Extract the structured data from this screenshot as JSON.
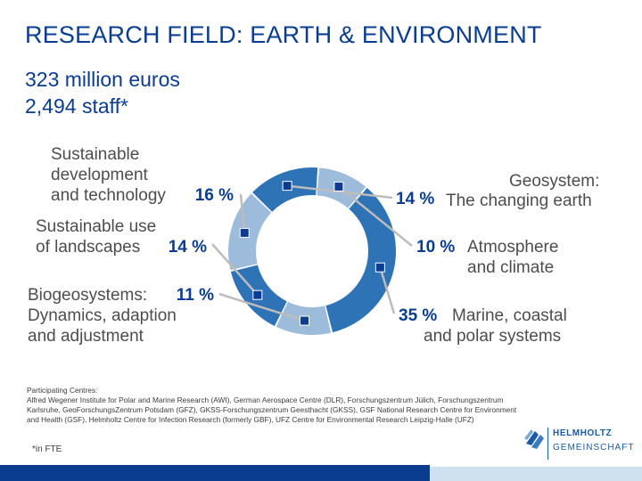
{
  "header": {
    "title": "RESEARCH FIELD: EARTH & ENVIRONMENT",
    "budget": "323 million euros",
    "staff": "2,494 staff*"
  },
  "chart_data": {
    "type": "pie",
    "style": "donut",
    "total_percent": 100,
    "slices": [
      {
        "name": "Geosystem: The changing earth",
        "lines": [
          "Geosystem:",
          "The changing earth"
        ],
        "value": 14,
        "label": "14 %",
        "color": "#2e73b5"
      },
      {
        "name": "Atmosphere and climate",
        "lines": [
          "Atmosphere",
          "and climate"
        ],
        "value": 10,
        "label": "10 %",
        "color": "#9dbcdc"
      },
      {
        "name": "Marine, coastal and polar systems",
        "lines": [
          "Marine, coastal",
          "and polar systems"
        ],
        "value": 35,
        "label": "35 %",
        "color": "#2e73b5"
      },
      {
        "name": "Biogeosystems: Dynamics, adaption and adjustment",
        "lines": [
          "Biogeosystems:",
          "Dynamics, adaption",
          "and adjustment"
        ],
        "value": 11,
        "label": "11 %",
        "color": "#9dbcdc"
      },
      {
        "name": "Sustainable use of landscapes",
        "lines": [
          "Sustainable use",
          "of landscapes"
        ],
        "value": 14,
        "label": "14 %",
        "color": "#2e73b5"
      },
      {
        "name": "Sustainable development and technology",
        "lines": [
          "Sustainable",
          "development",
          "and technology"
        ],
        "value": 16,
        "label": "16 %",
        "color": "#9dbcdc"
      }
    ],
    "marker_color": "#0a3d8f",
    "leader_color": "#bcbcbc"
  },
  "footer": {
    "participating_heading": "Participating Centres:",
    "participating_text": "Alfred Wegener Institute for Polar and Marine Research (AWI), German Aerospace Centre (DLR), Forschungszentrum Jülich, Forschungszentrum Karlsruhe, GeoForschungsZentrum Potsdam (GFZ), GKSS-Forschungszentrum Geesthacht (GKSS), GSF National Research Centre for Environment and Health (GSF), Helmholtz Centre for Infection Research (formerly GBF), UFZ Centre for Environmental Research Leipzig-Halle (UFZ)",
    "fte_note": "*in FTE"
  },
  "logo": {
    "line1": "HELMHOLTZ",
    "line2": "GEMEINSCHAFT"
  }
}
